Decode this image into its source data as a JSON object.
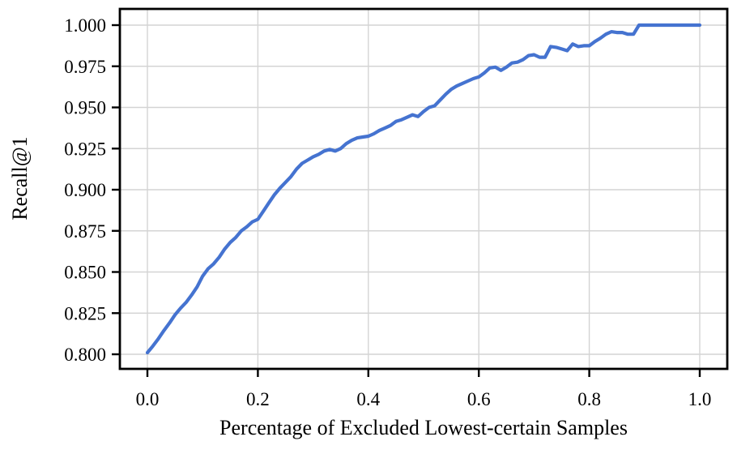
{
  "chart_data": {
    "type": "line",
    "xlabel": "Percentage of Excluded Lowest-certain Samples",
    "ylabel": "Recall@1",
    "x_ticks": [
      "0.0",
      "0.2",
      "0.4",
      "0.6",
      "0.8",
      "1.0"
    ],
    "x_tick_values": [
      0.0,
      0.2,
      0.4,
      0.6,
      0.8,
      1.0
    ],
    "y_ticks": [
      "0.800",
      "0.825",
      "0.850",
      "0.875",
      "0.900",
      "0.925",
      "0.950",
      "0.975",
      "1.000"
    ],
    "y_tick_values": [
      0.8,
      0.825,
      0.85,
      0.875,
      0.9,
      0.925,
      0.95,
      0.975,
      1.0
    ],
    "xlim": [
      -0.05,
      1.05
    ],
    "ylim": [
      0.791,
      1.01
    ],
    "grid": true,
    "legend": "none",
    "line_color": "#4573d0",
    "series": [
      {
        "name": "recall-at-1-vs-excluded-percentage",
        "x": [
          0.0,
          0.01,
          0.02,
          0.03,
          0.04,
          0.05,
          0.06,
          0.07,
          0.08,
          0.09,
          0.1,
          0.11,
          0.12,
          0.13,
          0.14,
          0.15,
          0.16,
          0.17,
          0.18,
          0.19,
          0.2,
          0.21,
          0.22,
          0.23,
          0.24,
          0.25,
          0.26,
          0.27,
          0.28,
          0.29,
          0.3,
          0.31,
          0.32,
          0.33,
          0.34,
          0.35,
          0.36,
          0.37,
          0.38,
          0.39,
          0.4,
          0.41,
          0.42,
          0.43,
          0.44,
          0.45,
          0.46,
          0.47,
          0.48,
          0.49,
          0.5,
          0.51,
          0.52,
          0.53,
          0.54,
          0.55,
          0.56,
          0.57,
          0.58,
          0.59,
          0.6,
          0.61,
          0.62,
          0.63,
          0.64,
          0.65,
          0.66,
          0.67,
          0.68,
          0.69,
          0.7,
          0.71,
          0.72,
          0.73,
          0.74,
          0.75,
          0.76,
          0.77,
          0.78,
          0.79,
          0.8,
          0.81,
          0.82,
          0.83,
          0.84,
          0.85,
          0.86,
          0.87,
          0.88,
          0.89,
          0.9,
          0.91,
          0.92,
          0.93,
          0.94,
          0.95,
          0.96,
          0.97,
          0.98,
          0.99,
          1.0
        ],
        "y": [
          0.801,
          0.805,
          0.8095,
          0.8145,
          0.819,
          0.824,
          0.828,
          0.8315,
          0.836,
          0.841,
          0.8475,
          0.852,
          0.855,
          0.859,
          0.864,
          0.868,
          0.871,
          0.875,
          0.8775,
          0.8805,
          0.882,
          0.887,
          0.892,
          0.897,
          0.901,
          0.9045,
          0.908,
          0.9125,
          0.916,
          0.918,
          0.92,
          0.9215,
          0.9235,
          0.9245,
          0.9235,
          0.925,
          0.928,
          0.93,
          0.9315,
          0.932,
          0.9325,
          0.934,
          0.936,
          0.9375,
          0.939,
          0.9415,
          0.9425,
          0.944,
          0.9455,
          0.9445,
          0.9475,
          0.95,
          0.951,
          0.9545,
          0.958,
          0.961,
          0.963,
          0.9645,
          0.966,
          0.9675,
          0.9685,
          0.971,
          0.974,
          0.9745,
          0.9725,
          0.9745,
          0.977,
          0.9775,
          0.979,
          0.9815,
          0.982,
          0.9805,
          0.9805,
          0.987,
          0.9865,
          0.9855,
          0.9845,
          0.9885,
          0.987,
          0.9875,
          0.9875,
          0.99,
          0.992,
          0.9945,
          0.996,
          0.9955,
          0.9955,
          0.9945,
          0.9945,
          1.0,
          1.0,
          1.0,
          1.0,
          1.0,
          1.0,
          1.0,
          1.0,
          1.0,
          1.0,
          1.0,
          1.0
        ]
      }
    ]
  }
}
